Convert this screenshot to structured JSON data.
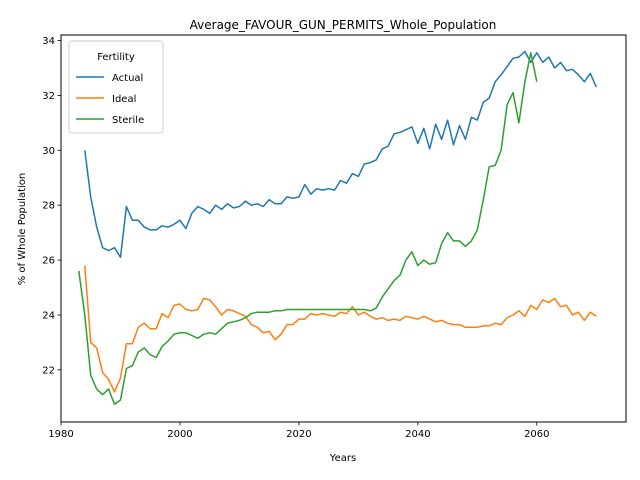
{
  "chart_data": {
    "type": "line",
    "title": "Average_FAVOUR_GUN_PERMITS_Whole_Population",
    "xlabel": "Years",
    "ylabel": "% of Whole Population",
    "xlim": [
      1980,
      2075
    ],
    "ylim": [
      20.1,
      34.2
    ],
    "xticks": [
      1980,
      2000,
      2020,
      2040,
      2060
    ],
    "yticks": [
      22,
      24,
      26,
      28,
      30,
      32,
      34
    ],
    "grid": false,
    "legend": {
      "title": "Fertility",
      "location": "top-left"
    },
    "series": [
      {
        "name": "Actual",
        "color": "#1f77b4",
        "x": [
          1984,
          1985,
          1986,
          1987,
          1988,
          1989,
          1990,
          1991,
          1992,
          1993,
          1994,
          1995,
          1996,
          1997,
          1998,
          1999,
          2000,
          2001,
          2002,
          2003,
          2004,
          2005,
          2006,
          2007,
          2008,
          2009,
          2010,
          2011,
          2012,
          2013,
          2014,
          2015,
          2016,
          2017,
          2018,
          2019,
          2020,
          2021,
          2022,
          2023,
          2024,
          2025,
          2026,
          2027,
          2028,
          2029,
          2030,
          2031,
          2032,
          2033,
          2034,
          2035,
          2036,
          2037,
          2038,
          2039,
          2040,
          2041,
          2042,
          2043,
          2044,
          2045,
          2046,
          2047,
          2048,
          2049,
          2050,
          2051,
          2052,
          2053,
          2054,
          2055,
          2056,
          2057,
          2058,
          2059,
          2060,
          2061,
          2062,
          2063,
          2064,
          2065,
          2066,
          2067,
          2068,
          2069,
          2070
        ],
        "values": [
          30.0,
          28.3,
          27.2,
          26.45,
          26.35,
          26.45,
          26.1,
          27.95,
          27.45,
          27.45,
          27.2,
          27.1,
          27.1,
          27.25,
          27.2,
          27.3,
          27.45,
          27.15,
          27.7,
          27.95,
          27.85,
          27.7,
          28.0,
          27.85,
          28.05,
          27.9,
          27.95,
          28.15,
          28.0,
          28.05,
          27.95,
          28.2,
          28.05,
          28.05,
          28.3,
          28.25,
          28.3,
          28.75,
          28.4,
          28.6,
          28.55,
          28.6,
          28.55,
          28.9,
          28.8,
          29.15,
          29.05,
          29.5,
          29.55,
          29.65,
          30.05,
          30.15,
          30.6,
          30.65,
          30.75,
          30.85,
          30.25,
          30.8,
          30.05,
          30.95,
          30.4,
          31.1,
          30.2,
          30.9,
          30.4,
          31.2,
          31.1,
          31.75,
          31.9,
          32.5,
          32.75,
          33.05,
          33.35,
          33.4,
          33.6,
          33.2,
          33.55,
          33.2,
          33.4,
          33.0,
          33.2,
          32.9,
          32.95,
          32.75,
          32.5,
          32.8,
          32.3
        ]
      },
      {
        "name": "Ideal",
        "color": "#ff7f0e",
        "x": [
          1984,
          1985,
          1986,
          1987,
          1988,
          1989,
          1990,
          1991,
          1992,
          1993,
          1994,
          1995,
          1996,
          1997,
          1998,
          1999,
          2000,
          2001,
          2002,
          2003,
          2004,
          2005,
          2006,
          2007,
          2008,
          2009,
          2010,
          2011,
          2012,
          2013,
          2014,
          2015,
          2016,
          2017,
          2018,
          2019,
          2020,
          2021,
          2022,
          2023,
          2024,
          2025,
          2026,
          2027,
          2028,
          2029,
          2030,
          2031,
          2032,
          2033,
          2034,
          2035,
          2036,
          2037,
          2038,
          2039,
          2040,
          2041,
          2042,
          2043,
          2044,
          2045,
          2046,
          2047,
          2048,
          2049,
          2050,
          2051,
          2052,
          2053,
          2054,
          2055,
          2056,
          2057,
          2058,
          2059,
          2060,
          2061,
          2062,
          2063,
          2064,
          2065,
          2066,
          2067,
          2068,
          2069,
          2070
        ],
        "values": [
          25.8,
          23.0,
          22.8,
          21.9,
          21.65,
          21.2,
          21.7,
          22.95,
          22.95,
          23.55,
          23.7,
          23.5,
          23.5,
          24.05,
          23.9,
          24.35,
          24.4,
          24.2,
          24.15,
          24.2,
          24.6,
          24.55,
          24.3,
          24.0,
          24.2,
          24.15,
          24.05,
          23.95,
          23.65,
          23.55,
          23.35,
          23.4,
          23.1,
          23.3,
          23.65,
          23.65,
          23.85,
          23.85,
          24.05,
          24.0,
          24.05,
          24.0,
          23.95,
          24.1,
          24.05,
          24.3,
          24.0,
          24.1,
          23.95,
          23.85,
          23.9,
          23.8,
          23.85,
          23.8,
          23.95,
          23.9,
          23.85,
          23.95,
          23.85,
          23.75,
          23.8,
          23.7,
          23.65,
          23.65,
          23.55,
          23.55,
          23.55,
          23.6,
          23.6,
          23.7,
          23.65,
          23.9,
          24.0,
          24.15,
          23.95,
          24.35,
          24.2,
          24.55,
          24.45,
          24.6,
          24.3,
          24.35,
          24.0,
          24.1,
          23.8,
          24.1,
          23.95
        ]
      },
      {
        "name": "Sterile",
        "color": "#2ca02c",
        "x": [
          1983,
          1984,
          1985,
          1986,
          1987,
          1988,
          1989,
          1990,
          1991,
          1992,
          1993,
          1994,
          1995,
          1996,
          1997,
          1998,
          1999,
          2000,
          2001,
          2002,
          2003,
          2004,
          2005,
          2006,
          2007,
          2008,
          2009,
          2010,
          2011,
          2012,
          2013,
          2014,
          2015,
          2016,
          2017,
          2018,
          2019,
          2020,
          2021,
          2022,
          2023,
          2024,
          2025,
          2026,
          2027,
          2028,
          2029,
          2030,
          2031,
          2032,
          2033,
          2034,
          2035,
          2036,
          2037,
          2038,
          2039,
          2040,
          2041,
          2042,
          2043,
          2044,
          2045,
          2046,
          2047,
          2048,
          2049,
          2050,
          2051,
          2052,
          2053,
          2054,
          2055,
          2056,
          2057,
          2058,
          2059,
          2060
        ],
        "values": [
          25.6,
          24.0,
          21.8,
          21.3,
          21.1,
          21.3,
          20.75,
          20.9,
          22.05,
          22.15,
          22.65,
          22.8,
          22.55,
          22.45,
          22.85,
          23.05,
          23.3,
          23.35,
          23.35,
          23.25,
          23.15,
          23.3,
          23.35,
          23.3,
          23.5,
          23.7,
          23.75,
          23.8,
          23.9,
          24.05,
          24.1,
          24.1,
          24.1,
          24.15,
          24.15,
          24.2,
          24.2,
          24.2,
          24.2,
          24.2,
          24.2,
          24.2,
          24.2,
          24.2,
          24.2,
          24.2,
          24.2,
          24.2,
          24.2,
          24.15,
          24.25,
          24.65,
          24.95,
          25.25,
          25.45,
          26.0,
          26.3,
          25.8,
          26.0,
          25.85,
          25.9,
          26.6,
          27.0,
          26.7,
          26.7,
          26.5,
          26.7,
          27.1,
          28.2,
          29.4,
          29.45,
          30.0,
          31.65,
          32.1,
          31.0,
          32.5,
          33.55,
          32.5
        ]
      }
    ]
  }
}
